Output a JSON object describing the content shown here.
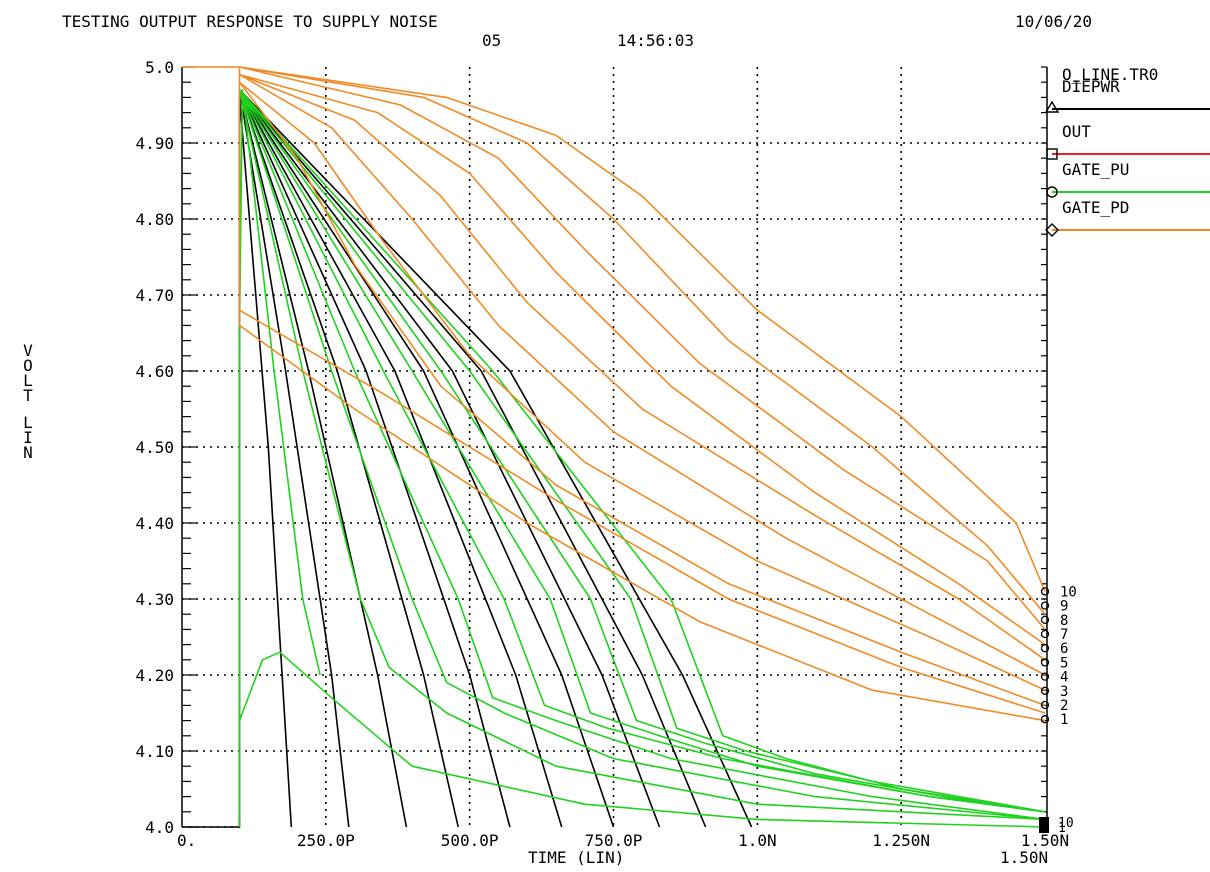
{
  "header": {
    "title": "TESTING OUTPUT RESPONSE TO SUPPLY NOISE",
    "date": "10/06/20",
    "sub_date": "05",
    "time": "14:56:03"
  },
  "legend": {
    "file": "O_LINE.TR0",
    "entries": [
      {
        "label": "DIEPWR",
        "marker": "triangle",
        "color": "#000000"
      },
      {
        "label": "OUT",
        "marker": "square",
        "color": "#e8231c"
      },
      {
        "label": "GATE_PU",
        "marker": "circle",
        "color": "#1fd21f"
      },
      {
        "label": "GATE_PD",
        "marker": "diamond",
        "color": "#f08a24"
      }
    ]
  },
  "sweep_labels": [
    "10",
    "9",
    "8",
    "7",
    "6",
    "5",
    "4",
    "3",
    "2",
    "1"
  ],
  "bottom_sweep_labels": [
    "10",
    "1"
  ],
  "chart_data": {
    "type": "line",
    "xlabel": "TIME (LIN)",
    "ylabel": "VOLT LIN",
    "xlim": [
      0,
      1.5e-09
    ],
    "ylim": [
      4.0,
      5.0
    ],
    "x_ticks": [
      {
        "v": 0,
        "label": "0."
      },
      {
        "v": 2.5e-10,
        "label": "250.0P"
      },
      {
        "v": 5e-10,
        "label": "500.0P"
      },
      {
        "v": 7.5e-10,
        "label": "750.0P"
      },
      {
        "v": 1e-09,
        "label": "1.0N"
      },
      {
        "v": 1.25e-09,
        "label": "1.250N"
      },
      {
        "v": 1.5e-09,
        "label": "1.50N"
      }
    ],
    "x_end_label": "1.50N",
    "y_ticks": [
      {
        "v": 4.0,
        "label": "4.0"
      },
      {
        "v": 4.1,
        "label": "4.10"
      },
      {
        "v": 4.2,
        "label": "4.20"
      },
      {
        "v": 4.3,
        "label": "4.30"
      },
      {
        "v": 4.4,
        "label": "4.40"
      },
      {
        "v": 4.5,
        "label": "4.50"
      },
      {
        "v": 4.6,
        "label": "4.60"
      },
      {
        "v": 4.7,
        "label": "4.70"
      },
      {
        "v": 4.8,
        "label": "4.80"
      },
      {
        "v": 4.9,
        "label": "4.90"
      },
      {
        "v": 5.0,
        "label": "5.0"
      }
    ],
    "grid": true,
    "series": [
      {
        "name": "DIEPWR",
        "color": "#000000",
        "curves": [
          {
            "points": [
              [
                0,
                4.0
              ],
              [
                1e-10,
                4.0
              ],
              [
                1e-10,
                4.96
              ],
              [
                1.5e-10,
                4.5
              ],
              [
                1.9e-10,
                4.0
              ]
            ]
          },
          {
            "points": [
              [
                1e-10,
                4.97
              ],
              [
                1.8e-10,
                4.6
              ],
              [
                2.6e-10,
                4.2
              ],
              [
                2.9e-10,
                4.0
              ]
            ]
          },
          {
            "points": [
              [
                1e-10,
                4.97
              ],
              [
                2.2e-10,
                4.6
              ],
              [
                3.4e-10,
                4.2
              ],
              [
                3.9e-10,
                4.0
              ]
            ]
          },
          {
            "points": [
              [
                1e-10,
                4.97
              ],
              [
                2.7e-10,
                4.6
              ],
              [
                4.2e-10,
                4.2
              ],
              [
                4.8e-10,
                4.0
              ]
            ]
          },
          {
            "points": [
              [
                1e-10,
                4.97
              ],
              [
                3.2e-10,
                4.6
              ],
              [
                5e-10,
                4.2
              ],
              [
                5.7e-10,
                4.0
              ]
            ]
          },
          {
            "points": [
              [
                1e-10,
                4.97
              ],
              [
                3.7e-10,
                4.6
              ],
              [
                5.8e-10,
                4.2
              ],
              [
                6.6e-10,
                4.0
              ]
            ]
          },
          {
            "points": [
              [
                1e-10,
                4.97
              ],
              [
                4.2e-10,
                4.6
              ],
              [
                6.6e-10,
                4.2
              ],
              [
                7.5e-10,
                4.0
              ]
            ]
          },
          {
            "points": [
              [
                1e-10,
                4.97
              ],
              [
                4.7e-10,
                4.6
              ],
              [
                7.3e-10,
                4.2
              ],
              [
                8.3e-10,
                4.0
              ]
            ]
          },
          {
            "points": [
              [
                1e-10,
                4.97
              ],
              [
                5.2e-10,
                4.6
              ],
              [
                8e-10,
                4.2
              ],
              [
                9.1e-10,
                4.0
              ]
            ]
          },
          {
            "points": [
              [
                1e-10,
                4.97
              ],
              [
                5.7e-10,
                4.6
              ],
              [
                8.7e-10,
                4.2
              ],
              [
                9.9e-10,
                4.0
              ]
            ]
          }
        ]
      },
      {
        "name": "GATE_PU",
        "color": "#1fd21f",
        "curves": [
          {
            "points": [
              [
                1e-10,
                4.0
              ],
              [
                1e-10,
                4.65
              ],
              [
                1.05e-10,
                4.97
              ],
              [
                1.6e-10,
                4.6
              ],
              [
                2.1e-10,
                4.3
              ],
              [
                2.4e-10,
                4.2
              ]
            ]
          },
          {
            "points": [
              [
                1e-10,
                4.14
              ],
              [
                1.4e-10,
                4.22
              ],
              [
                1.7e-10,
                4.23
              ],
              [
                2.6e-10,
                4.17
              ],
              [
                4e-10,
                4.08
              ],
              [
                7e-10,
                4.03
              ],
              [
                1e-09,
                4.01
              ],
              [
                1.5e-09,
                4.0
              ]
            ]
          },
          {
            "points": [
              [
                1e-10,
                4.97
              ],
              [
                2.1e-10,
                4.6
              ],
              [
                3.1e-10,
                4.3
              ],
              [
                3.6e-10,
                4.21
              ],
              [
                4.6e-10,
                4.15
              ],
              [
                6.5e-10,
                4.08
              ],
              [
                1e-09,
                4.03
              ],
              [
                1.5e-09,
                4.01
              ]
            ]
          },
          {
            "points": [
              [
                1e-10,
                4.97
              ],
              [
                2.6e-10,
                4.6
              ],
              [
                4e-10,
                4.3
              ],
              [
                4.6e-10,
                4.19
              ],
              [
                5.6e-10,
                4.15
              ],
              [
                7.5e-10,
                4.09
              ],
              [
                1.1e-09,
                4.04
              ],
              [
                1.5e-09,
                4.01
              ]
            ]
          },
          {
            "points": [
              [
                1e-10,
                4.97
              ],
              [
                3e-10,
                4.6
              ],
              [
                4.8e-10,
                4.3
              ],
              [
                5.4e-10,
                4.17
              ],
              [
                6.5e-10,
                4.14
              ],
              [
                8.5e-10,
                4.09
              ],
              [
                1.2e-09,
                4.04
              ],
              [
                1.5e-09,
                4.01
              ]
            ]
          },
          {
            "points": [
              [
                1e-10,
                4.97
              ],
              [
                3.5e-10,
                4.6
              ],
              [
                5.6e-10,
                4.3
              ],
              [
                6.3e-10,
                4.16
              ],
              [
                7.4e-10,
                4.13
              ],
              [
                9.4e-10,
                4.09
              ],
              [
                1.3e-09,
                4.04
              ],
              [
                1.5e-09,
                4.02
              ]
            ]
          },
          {
            "points": [
              [
                1e-10,
                4.97
              ],
              [
                4e-10,
                4.6
              ],
              [
                6.4e-10,
                4.3
              ],
              [
                7.1e-10,
                4.15
              ],
              [
                8.3e-10,
                4.12
              ],
              [
                1e-09,
                4.08
              ],
              [
                1.3e-09,
                4.04
              ],
              [
                1.5e-09,
                4.02
              ]
            ]
          },
          {
            "points": [
              [
                1e-10,
                4.97
              ],
              [
                4.5e-10,
                4.6
              ],
              [
                7.1e-10,
                4.3
              ],
              [
                7.9e-10,
                4.14
              ],
              [
                9.1e-10,
                4.11
              ],
              [
                1.1e-09,
                4.07
              ],
              [
                1.4e-09,
                4.03
              ],
              [
                1.5e-09,
                4.02
              ]
            ]
          },
          {
            "points": [
              [
                1e-10,
                4.97
              ],
              [
                5e-10,
                4.6
              ],
              [
                7.8e-10,
                4.3
              ],
              [
                8.6e-10,
                4.13
              ],
              [
                9.8e-10,
                4.1
              ],
              [
                1.2e-09,
                4.06
              ],
              [
                1.5e-09,
                4.02
              ]
            ]
          },
          {
            "points": [
              [
                1e-10,
                4.97
              ],
              [
                5.4e-10,
                4.6
              ],
              [
                8.5e-10,
                4.3
              ],
              [
                9.4e-10,
                4.12
              ],
              [
                1.05e-09,
                4.09
              ],
              [
                1.25e-09,
                4.05
              ],
              [
                1.5e-09,
                4.02
              ]
            ]
          }
        ]
      },
      {
        "name": "GATE_PD",
        "color": "#f08a24",
        "curves": [
          {
            "points": [
              [
                0,
                5.0
              ],
              [
                1e-10,
                5.0
              ],
              [
                1e-10,
                4.66
              ],
              [
                3e-10,
                4.55
              ],
              [
                6e-10,
                4.4
              ],
              [
                9e-10,
                4.27
              ],
              [
                1.2e-09,
                4.18
              ],
              [
                1.5e-09,
                4.14
              ]
            ]
          },
          {
            "points": [
              [
                1e-10,
                4.68
              ],
              [
                3.5e-10,
                4.57
              ],
              [
                6.5e-10,
                4.43
              ],
              [
                9.5e-10,
                4.3
              ],
              [
                1.25e-09,
                4.21
              ],
              [
                1.5e-09,
                4.15
              ]
            ]
          },
          {
            "points": [
              [
                1e-10,
                4.98
              ],
              [
                2e-10,
                4.88
              ],
              [
                3e-10,
                4.74
              ],
              [
                4.5e-10,
                4.58
              ],
              [
                6.5e-10,
                4.45
              ],
              [
                9.5e-10,
                4.32
              ],
              [
                1.25e-09,
                4.23
              ],
              [
                1.5e-09,
                4.16
              ]
            ]
          },
          {
            "points": [
              [
                1e-10,
                4.98
              ],
              [
                2.3e-10,
                4.9
              ],
              [
                3.5e-10,
                4.77
              ],
              [
                5e-10,
                4.62
              ],
              [
                7e-10,
                4.48
              ],
              [
                1e-09,
                4.35
              ],
              [
                1.3e-09,
                4.25
              ],
              [
                1.5e-09,
                4.18
              ]
            ]
          },
          {
            "points": [
              [
                1e-10,
                4.99
              ],
              [
                2.6e-10,
                4.92
              ],
              [
                4e-10,
                4.8
              ],
              [
                5.5e-10,
                4.66
              ],
              [
                7.5e-10,
                4.52
              ],
              [
                1.05e-09,
                4.38
              ],
              [
                1.3e-09,
                4.28
              ],
              [
                1.5e-09,
                4.2
              ]
            ]
          },
          {
            "points": [
              [
                1e-10,
                4.99
              ],
              [
                3e-10,
                4.93
              ],
              [
                4.5e-10,
                4.83
              ],
              [
                6e-10,
                4.69
              ],
              [
                8e-10,
                4.55
              ],
              [
                1.1e-09,
                4.41
              ],
              [
                1.35e-09,
                4.3
              ],
              [
                1.5e-09,
                4.22
              ]
            ]
          },
          {
            "points": [
              [
                1e-10,
                4.99
              ],
              [
                3.4e-10,
                4.94
              ],
              [
                5e-10,
                4.86
              ],
              [
                6.5e-10,
                4.73
              ],
              [
                8.5e-10,
                4.58
              ],
              [
                1.1e-09,
                4.44
              ],
              [
                1.35e-09,
                4.32
              ],
              [
                1.5e-09,
                4.24
              ]
            ]
          },
          {
            "points": [
              [
                1e-10,
                5.0
              ],
              [
                3.8e-10,
                4.95
              ],
              [
                5.5e-10,
                4.88
              ],
              [
                7e-10,
                4.76
              ],
              [
                9e-10,
                4.61
              ],
              [
                1.15e-09,
                4.47
              ],
              [
                1.4e-09,
                4.35
              ],
              [
                1.5e-09,
                4.26
              ]
            ]
          },
          {
            "points": [
              [
                1e-10,
                5.0
              ],
              [
                4.2e-10,
                4.96
              ],
              [
                6e-10,
                4.9
              ],
              [
                7.5e-10,
                4.8
              ],
              [
                9.5e-10,
                4.64
              ],
              [
                1.2e-09,
                4.5
              ],
              [
                1.4e-09,
                4.37
              ],
              [
                1.5e-09,
                4.28
              ]
            ]
          },
          {
            "points": [
              [
                1e-10,
                5.0
              ],
              [
                4.6e-10,
                4.96
              ],
              [
                6.5e-10,
                4.91
              ],
              [
                8e-10,
                4.83
              ],
              [
                1e-09,
                4.68
              ],
              [
                1.25e-09,
                4.54
              ],
              [
                1.45e-09,
                4.4
              ],
              [
                1.5e-09,
                4.31
              ]
            ]
          }
        ]
      }
    ]
  }
}
